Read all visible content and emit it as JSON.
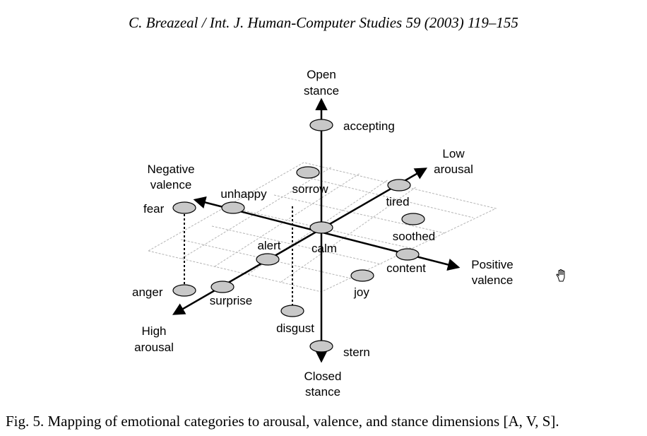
{
  "header": {
    "running_head": "C. Breazeal / Int. J. Human-Computer Studies 59 (2003) 119–155"
  },
  "figure": {
    "axes": {
      "stance_positive": [
        "Open",
        "stance"
      ],
      "stance_negative": [
        "Closed",
        "stance"
      ],
      "arousal_low": [
        "Low",
        "arousal"
      ],
      "arousal_high": [
        "High",
        "arousal"
      ],
      "valence_negative": [
        "Negative",
        "valence"
      ],
      "valence_positive": [
        "Positive",
        "valence"
      ]
    },
    "emotions": {
      "accepting": "accepting",
      "tired": "tired",
      "sorrow": "sorrow",
      "unhappy": "unhappy",
      "fear": "fear",
      "soothed": "soothed",
      "calm": "calm",
      "alert": "alert",
      "content": "content",
      "joy": "joy",
      "anger": "anger",
      "surprise": "surprise",
      "disgust": "disgust",
      "stern": "stern"
    },
    "colors": {
      "marker_fill": "#c8c8c8",
      "grid": "#b4b4b4",
      "ink": "#000000"
    }
  },
  "caption": "Fig. 5.  Mapping of emotional categories to arousal, valence, and stance dimensions [A, V, S].",
  "icons": {
    "cursor": "hand-cursor-icon"
  }
}
